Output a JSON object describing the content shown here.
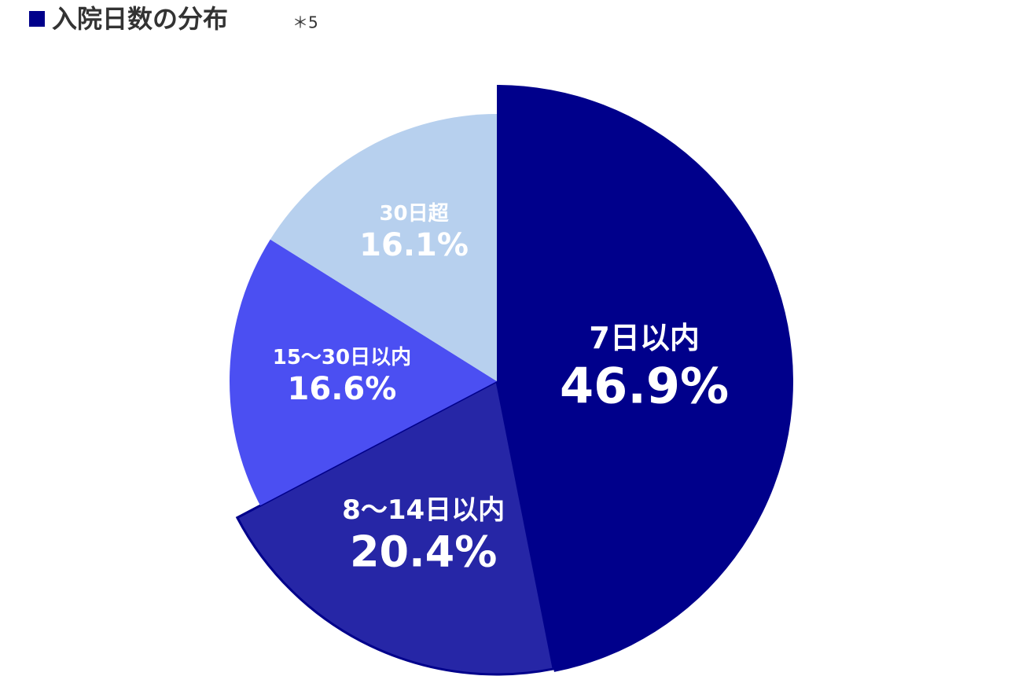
{
  "chart_data": {
    "type": "pie",
    "title": "入院日数の分布",
    "title_note": "＊5",
    "categories": [
      "7日以内",
      "8〜14日以内",
      "15〜30日以内",
      "30日超"
    ],
    "values": [
      46.9,
      20.4,
      16.6,
      16.1
    ],
    "value_labels": [
      "46.9%",
      "20.4%",
      "16.6%",
      "16.1%"
    ],
    "colors": [
      "#00008b",
      "#2626a6",
      "#4b4ff2",
      "#b7d0ee"
    ]
  }
}
